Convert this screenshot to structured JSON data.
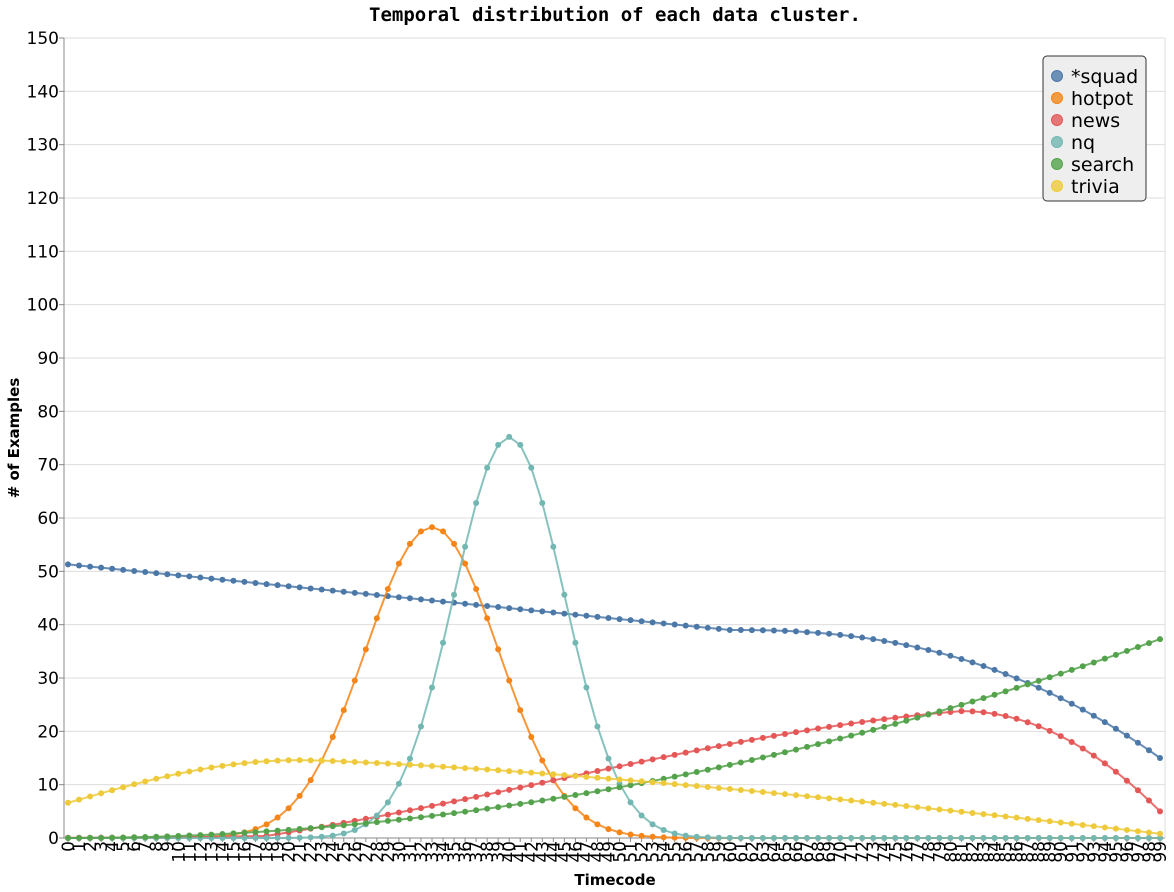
{
  "chart_data": {
    "type": "line",
    "title": "Temporal distribution of each data cluster.",
    "xlabel": "Timecode",
    "ylabel": "# of Examples",
    "xlim": [
      0,
      99
    ],
    "ylim": [
      0,
      150
    ],
    "yticks": [
      0,
      10,
      20,
      30,
      40,
      50,
      60,
      70,
      80,
      90,
      100,
      110,
      120,
      130,
      140,
      150
    ],
    "grid": true,
    "legend_position": "top-right",
    "series": [
      {
        "name": "*squad",
        "color": "#4c78a8",
        "peak": 51.3,
        "shape": "linear-then-drop",
        "start": 51.3,
        "mid_x": 60,
        "mid_y": 39.0,
        "x88": 27.5,
        "end": 15.0
      },
      {
        "name": "hotpot",
        "color": "#f58518",
        "peak": 58.3,
        "shape": "gaussian",
        "center": 33,
        "sigma": 6.0
      },
      {
        "name": "news",
        "color": "#e45756",
        "peak": 23.8,
        "shape": "skewed-rise",
        "center": 81,
        "start_x": 18,
        "end": 5.0
      },
      {
        "name": "nq",
        "color": "#72b7b2",
        "peak": 75.2,
        "shape": "gaussian",
        "center": 40,
        "sigma": 5.0
      },
      {
        "name": "search",
        "color": "#54a24b",
        "peak": 37.3,
        "shape": "rising",
        "end": 37.3
      },
      {
        "name": "trivia",
        "color": "#eeca3b",
        "peak": 14.6,
        "shape": "humped-decline",
        "start": 6.6,
        "center": 21,
        "end": 0.8
      }
    ]
  }
}
